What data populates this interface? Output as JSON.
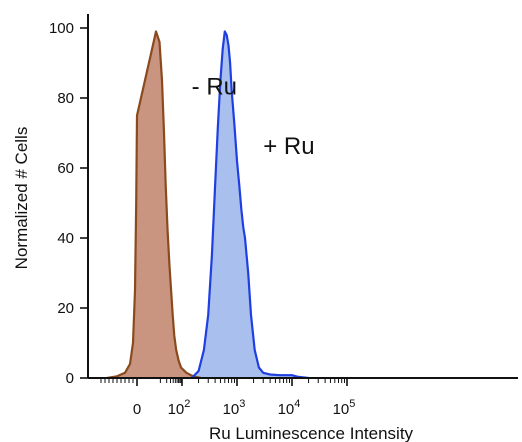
{
  "chart_data": {
    "type": "area",
    "xlabel": "Ru Luminescence Intensity",
    "ylabel": "Normalized # Cells",
    "ylim": [
      0,
      104
    ],
    "xscale": "biexponential",
    "xlim": [
      -200,
      100000
    ],
    "yticks": [
      {
        "value": 0,
        "label": "0"
      },
      {
        "value": 20,
        "label": "20"
      },
      {
        "value": 40,
        "label": "40"
      },
      {
        "value": 60,
        "label": "60"
      },
      {
        "value": 80,
        "label": "80"
      },
      {
        "value": 100,
        "label": "100"
      }
    ],
    "xticks": [
      {
        "value": 0,
        "base": "0",
        "exp": ""
      },
      {
        "value": 100,
        "base": "10",
        "exp": "2"
      },
      {
        "value": 1000,
        "base": "10",
        "exp": "3"
      },
      {
        "value": 10000,
        "base": "10",
        "exp": "4"
      },
      {
        "value": 100000,
        "base": "10",
        "exp": "5"
      }
    ],
    "grid": false,
    "legend": "none",
    "series": [
      {
        "name": "- Ru",
        "color": "#8a4a1e",
        "fill": "#c99580",
        "x": [
          -150,
          -100,
          -60,
          -35,
          -20,
          -10,
          -4,
          0,
          3,
          6,
          9,
          12,
          15,
          18,
          22,
          27,
          32,
          38,
          45,
          55,
          70,
          90,
          120,
          160,
          220
        ],
        "y": [
          0,
          0.5,
          1.5,
          4,
          10,
          25,
          50,
          75,
          92,
          99,
          96,
          85,
          70,
          55,
          42,
          32,
          25,
          18,
          12,
          8,
          5,
          3,
          1.5,
          0.5,
          0
        ]
      },
      {
        "name": "+ Ru",
        "color": "#1f3fe0",
        "fill": "#a9c0ef",
        "x": [
          150,
          200,
          250,
          300,
          350,
          400,
          450,
          500,
          550,
          600,
          650,
          700,
          750,
          800,
          900,
          1000,
          1100,
          1200,
          1300,
          1400,
          1600,
          1800,
          2100,
          2500,
          3000,
          4000,
          6000,
          10000,
          13000,
          20000
        ],
        "y": [
          0,
          2,
          8,
          18,
          35,
          55,
          72,
          85,
          94,
          99,
          98,
          95,
          90,
          82,
          72,
          62,
          55,
          48,
          43,
          40,
          30,
          18,
          8,
          3,
          1.5,
          1,
          0.8,
          0.8,
          0.3,
          0
        ]
      }
    ],
    "annotations": [
      {
        "text": "- Ru",
        "x": 150,
        "y": 81
      },
      {
        "text": "+ Ru",
        "x": 3000,
        "y": 64
      }
    ]
  }
}
